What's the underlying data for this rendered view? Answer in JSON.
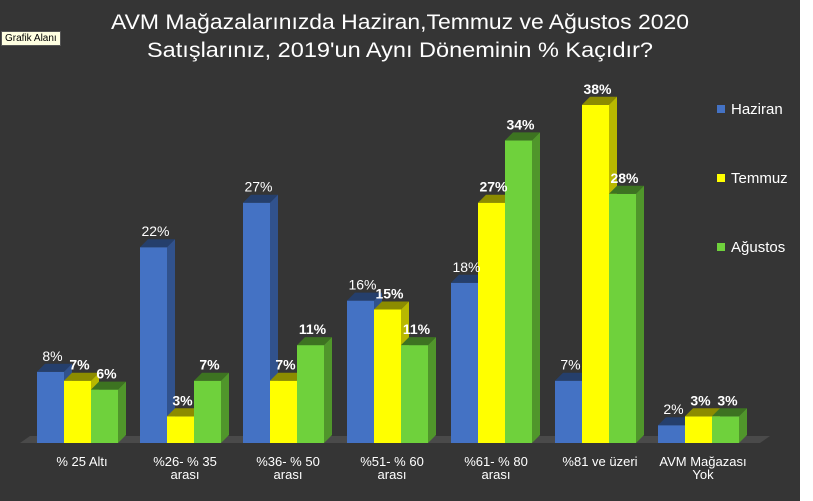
{
  "tooltip": "Grafik Alanı",
  "chart_data": {
    "type": "bar",
    "title_lines": [
      "AVM Mağazalarınızda Haziran,Temmuz ve Ağustos 2020",
      "Satışlarınız, 2019'un Aynı Döneminin % Kaçıdır?"
    ],
    "categories": [
      [
        "% 25 Altı"
      ],
      [
        "%26- % 35",
        "arası"
      ],
      [
        "%36- % 50",
        "arası"
      ],
      [
        "%51- % 60",
        "arası"
      ],
      [
        "%61- % 80",
        "arası"
      ],
      [
        "%81 ve üzeri"
      ],
      [
        "AVM Mağazası",
        "Yok"
      ]
    ],
    "series": [
      {
        "name": "Haziran",
        "color": "#4472c4",
        "values": [
          8,
          22,
          27,
          16,
          18,
          7,
          2
        ],
        "labels": [
          "8%",
          "22%",
          "27%",
          "16%",
          "18%",
          "7%",
          "2%"
        ]
      },
      {
        "name": "Temmuz",
        "color": "#ffff00",
        "values": [
          7,
          3,
          7,
          15,
          27,
          38,
          3
        ],
        "labels": [
          "7%",
          "3%",
          "7%",
          "15%",
          "27%",
          "38%",
          "3%"
        ]
      },
      {
        "name": "Ağustos",
        "color": "#6fd13c",
        "values": [
          6,
          7,
          11,
          11,
          34,
          28,
          3
        ],
        "labels": [
          "6%",
          "7%",
          "11%",
          "11%",
          "34%",
          "28%",
          "3%"
        ]
      }
    ],
    "ylim": [
      0,
      40
    ],
    "grid": false,
    "legend_position": "right"
  }
}
